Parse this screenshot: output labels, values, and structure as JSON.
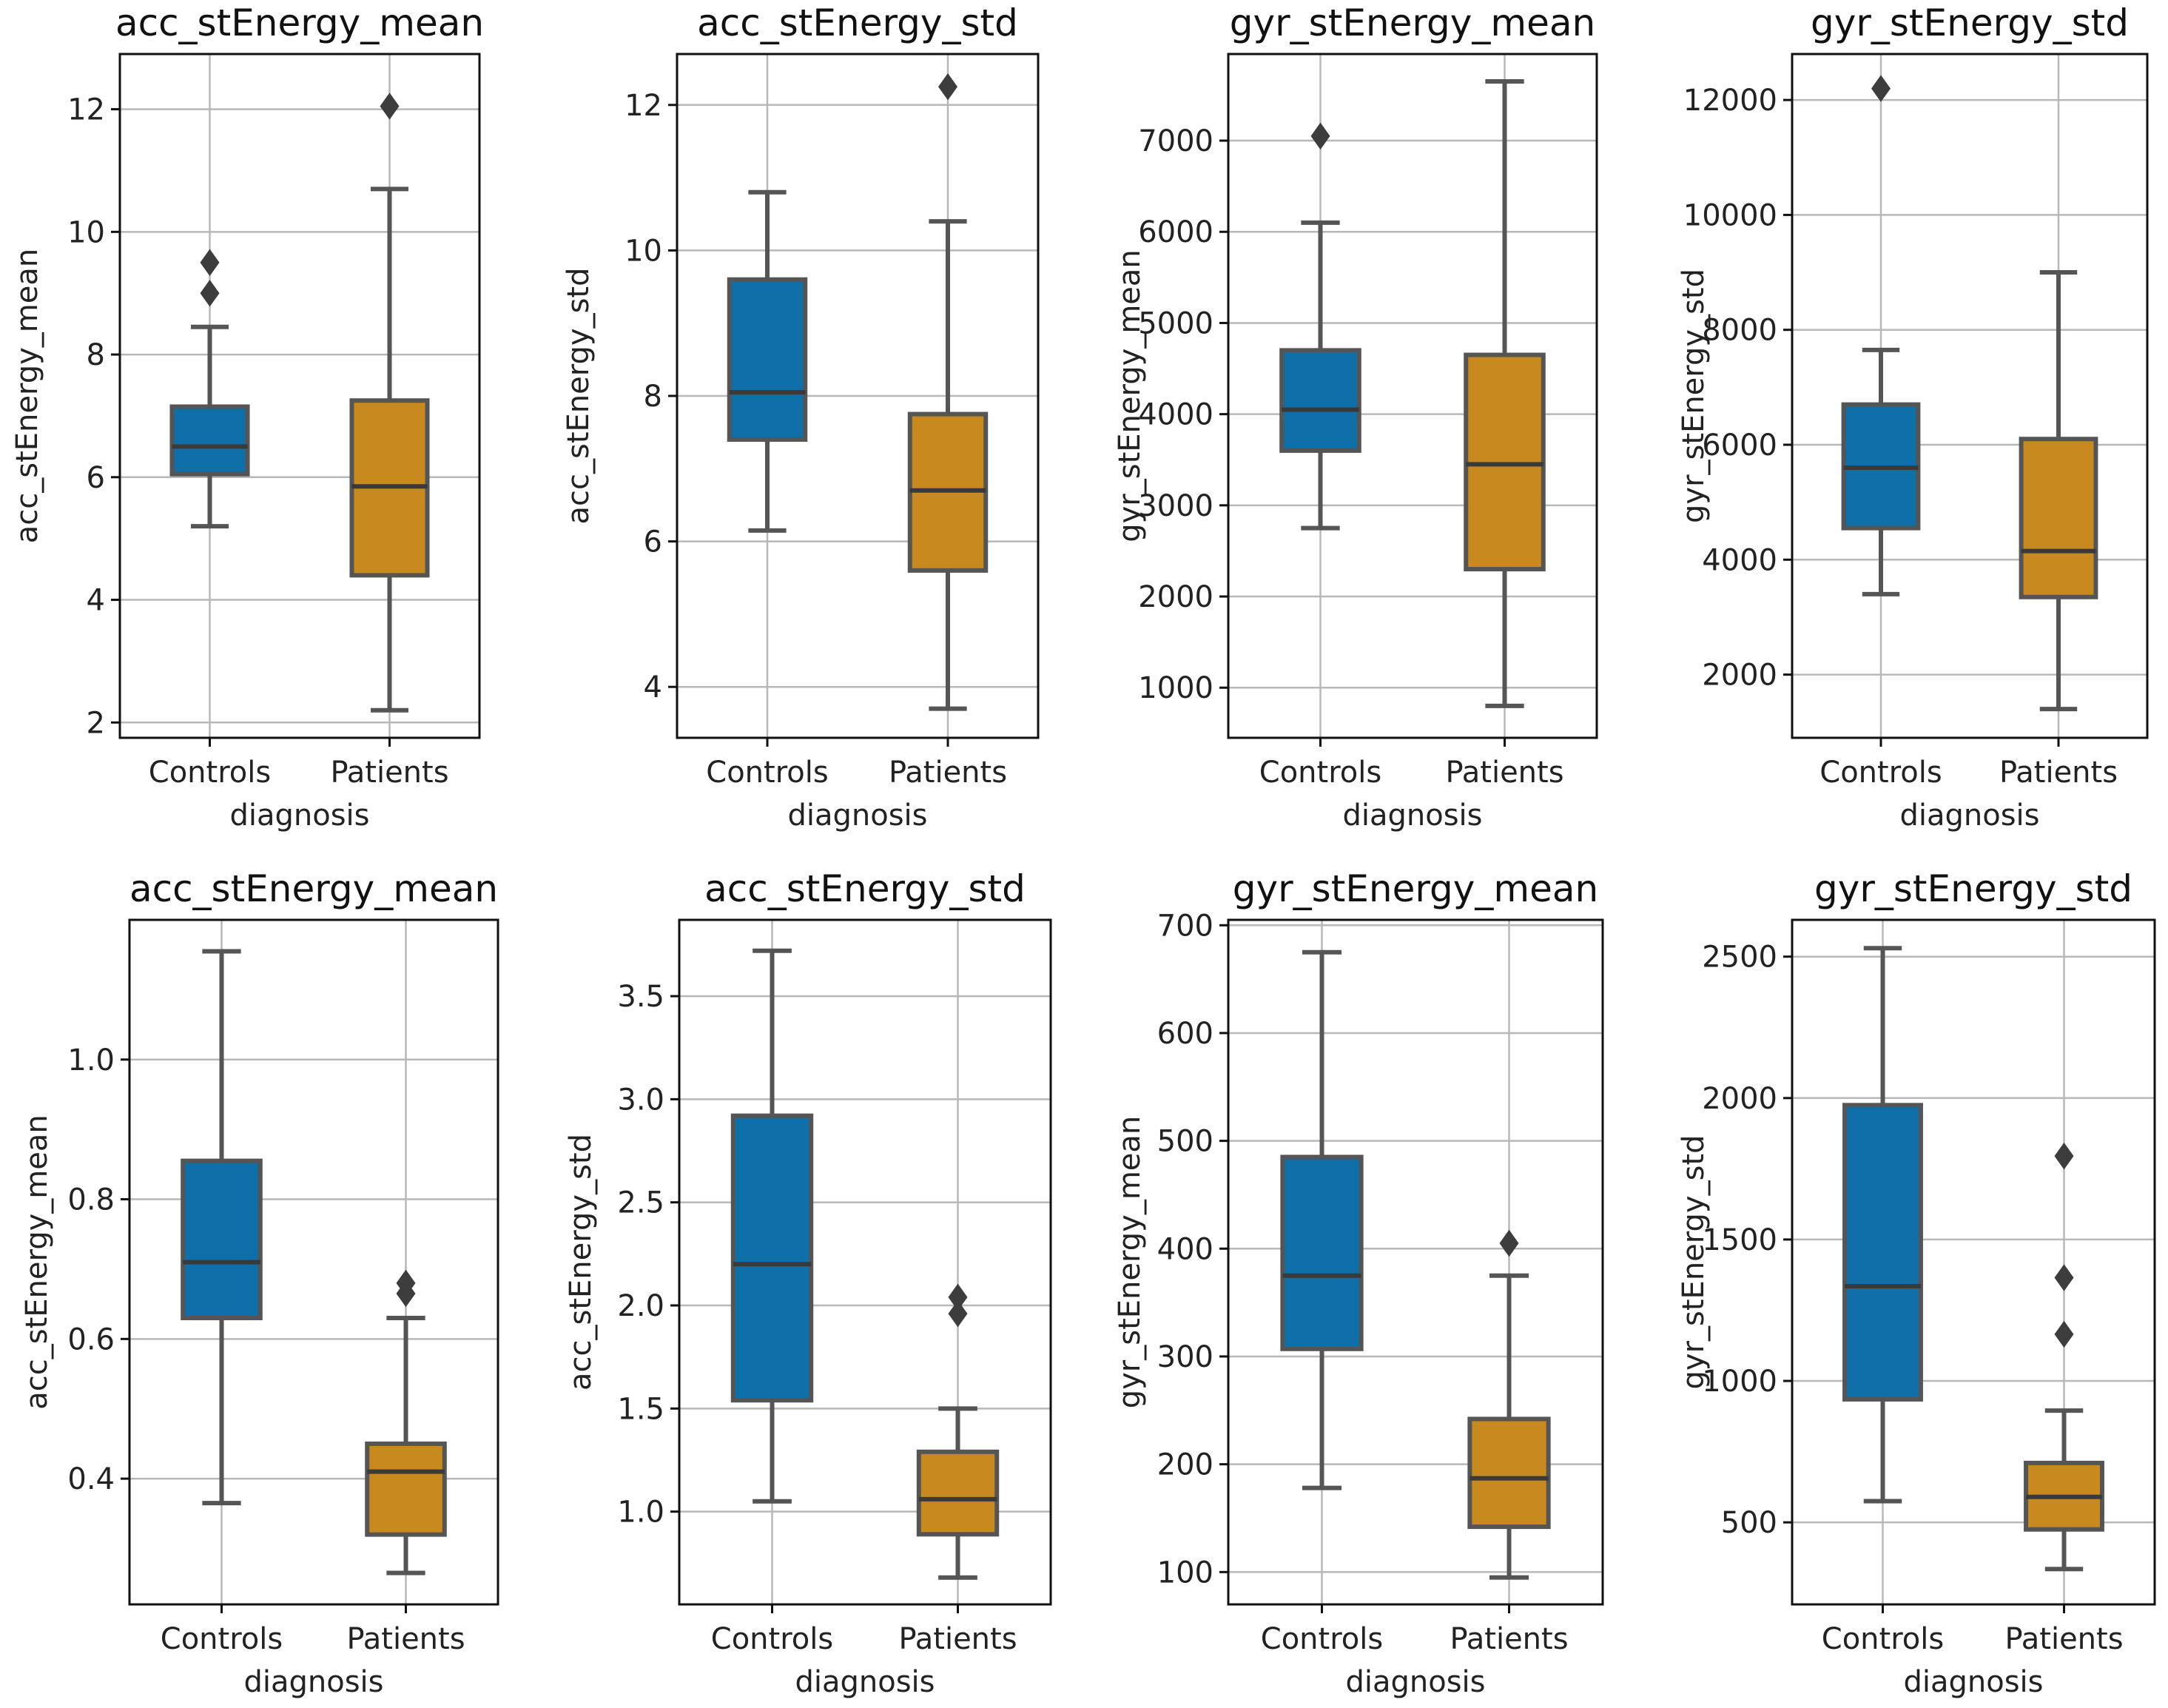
{
  "figure": {
    "xlabel": "diagnosis",
    "colors": {
      "Controls": "#0f6fa8",
      "Patients": "#c8891e",
      "median": "#3a3a3a",
      "whisker": "#555555"
    }
  },
  "chart_data": [
    {
      "type": "boxplot",
      "title": "acc_stEnergy_mean",
      "xlabel": "diagnosis",
      "ylabel": "acc_stEnergy_mean",
      "categories": [
        "Controls",
        "Patients"
      ],
      "ylim": [
        1.75,
        12.9
      ],
      "yticks": [
        2,
        4,
        6,
        8,
        10,
        12
      ],
      "grid": true,
      "boxes": [
        {
          "category": "Controls",
          "whislo": 5.2,
          "q1": 6.05,
          "med": 6.5,
          "q3": 7.15,
          "whishi": 8.45,
          "fliers": [
            9.0,
            9.5
          ]
        },
        {
          "category": "Patients",
          "whislo": 2.2,
          "q1": 4.4,
          "med": 5.85,
          "q3": 7.25,
          "whishi": 10.7,
          "fliers": [
            12.05
          ]
        }
      ]
    },
    {
      "type": "boxplot",
      "title": "acc_stEnergy_std",
      "xlabel": "diagnosis",
      "ylabel": "acc_stEnergy_std",
      "categories": [
        "Controls",
        "Patients"
      ],
      "ylim": [
        3.3,
        12.7
      ],
      "yticks": [
        4,
        6,
        8,
        10,
        12
      ],
      "grid": true,
      "boxes": [
        {
          "category": "Controls",
          "whislo": 6.15,
          "q1": 7.4,
          "med": 8.05,
          "q3": 9.6,
          "whishi": 10.8,
          "fliers": []
        },
        {
          "category": "Patients",
          "whislo": 3.7,
          "q1": 5.6,
          "med": 6.7,
          "q3": 7.75,
          "whishi": 10.4,
          "fliers": [
            12.25
          ]
        }
      ]
    },
    {
      "type": "boxplot",
      "title": "gyr_stEnergy_mean",
      "xlabel": "diagnosis",
      "ylabel": "gyr_stEnergy_mean",
      "categories": [
        "Controls",
        "Patients"
      ],
      "ylim": [
        450,
        7950
      ],
      "yticks": [
        1000,
        2000,
        3000,
        4000,
        5000,
        6000,
        7000
      ],
      "grid": true,
      "boxes": [
        {
          "category": "Controls",
          "whislo": 2750,
          "q1": 3600,
          "med": 4050,
          "q3": 4700,
          "whishi": 6100,
          "fliers": [
            7050
          ]
        },
        {
          "category": "Patients",
          "whislo": 800,
          "q1": 2300,
          "med": 3450,
          "q3": 4650,
          "whishi": 7650,
          "fliers": []
        }
      ]
    },
    {
      "type": "boxplot",
      "title": "gyr_stEnergy_std",
      "xlabel": "diagnosis",
      "ylabel": "gyr_stEnergy_std",
      "categories": [
        "Controls",
        "Patients"
      ],
      "ylim": [
        900,
        12800
      ],
      "yticks": [
        2000,
        4000,
        6000,
        8000,
        10000,
        12000
      ],
      "grid": true,
      "boxes": [
        {
          "category": "Controls",
          "whislo": 3400,
          "q1": 4550,
          "med": 5600,
          "q3": 6700,
          "whishi": 7650,
          "fliers": [
            12200
          ]
        },
        {
          "category": "Patients",
          "whislo": 1400,
          "q1": 3350,
          "med": 4150,
          "q3": 6100,
          "whishi": 9000,
          "fliers": []
        }
      ]
    },
    {
      "type": "boxplot",
      "title": "acc_stEnergy_mean",
      "xlabel": "diagnosis",
      "ylabel": "acc_stEnergy_mean",
      "categories": [
        "Controls",
        "Patients"
      ],
      "ylim": [
        0.22,
        1.2
      ],
      "yticks": [
        0.4,
        0.6,
        0.8,
        1.0
      ],
      "ytick_labels": [
        "0.4",
        "0.6",
        "0.8",
        "1.0"
      ],
      "grid": true,
      "boxes": [
        {
          "category": "Controls",
          "whislo": 0.365,
          "q1": 0.63,
          "med": 0.71,
          "q3": 0.855,
          "whishi": 1.155,
          "fliers": []
        },
        {
          "category": "Patients",
          "whislo": 0.265,
          "q1": 0.32,
          "med": 0.41,
          "q3": 0.45,
          "whishi": 0.63,
          "fliers": [
            0.665,
            0.68
          ]
        }
      ]
    },
    {
      "type": "boxplot",
      "title": "acc_stEnergy_std",
      "xlabel": "diagnosis",
      "ylabel": "acc_stEnergy_std",
      "categories": [
        "Controls",
        "Patients"
      ],
      "ylim": [
        0.55,
        3.87
      ],
      "yticks": [
        1.0,
        1.5,
        2.0,
        2.5,
        3.0,
        3.5
      ],
      "ytick_labels": [
        "1.0",
        "1.5",
        "2.0",
        "2.5",
        "3.0",
        "3.5"
      ],
      "grid": true,
      "boxes": [
        {
          "category": "Controls",
          "whislo": 1.05,
          "q1": 1.54,
          "med": 2.2,
          "q3": 2.92,
          "whishi": 3.72,
          "fliers": []
        },
        {
          "category": "Patients",
          "whislo": 0.68,
          "q1": 0.89,
          "med": 1.06,
          "q3": 1.29,
          "whishi": 1.5,
          "fliers": [
            1.96,
            2.04
          ]
        }
      ]
    },
    {
      "type": "boxplot",
      "title": "gyr_stEnergy_mean",
      "xlabel": "diagnosis",
      "ylabel": "gyr_stEnergy_mean",
      "categories": [
        "Controls",
        "Patients"
      ],
      "ylim": [
        70,
        705
      ],
      "yticks": [
        100,
        200,
        300,
        400,
        500,
        600,
        700
      ],
      "grid": true,
      "boxes": [
        {
          "category": "Controls",
          "whislo": 178,
          "q1": 307,
          "med": 375,
          "q3": 485,
          "whishi": 675,
          "fliers": []
        },
        {
          "category": "Patients",
          "whislo": 95,
          "q1": 142,
          "med": 187,
          "q3": 242,
          "whishi": 375,
          "fliers": [
            405
          ]
        }
      ]
    },
    {
      "type": "boxplot",
      "title": "gyr_stEnergy_std",
      "xlabel": "diagnosis",
      "ylabel": "gyr_stEnergy_std",
      "categories": [
        "Controls",
        "Patients"
      ],
      "ylim": [
        210,
        2630
      ],
      "yticks": [
        500,
        1000,
        1500,
        2000,
        2500
      ],
      "grid": true,
      "boxes": [
        {
          "category": "Controls",
          "whislo": 575,
          "q1": 935,
          "med": 1335,
          "q3": 1975,
          "whishi": 2530,
          "fliers": []
        },
        {
          "category": "Patients",
          "whislo": 335,
          "q1": 475,
          "med": 590,
          "q3": 710,
          "whishi": 895,
          "fliers": [
            1165,
            1365,
            1795
          ]
        }
      ]
    }
  ]
}
